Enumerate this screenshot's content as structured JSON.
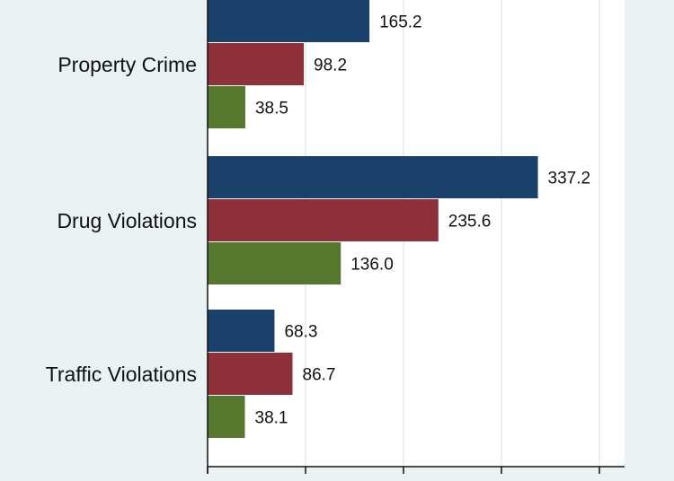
{
  "chart_data": {
    "type": "bar",
    "orientation": "horizontal",
    "categories": [
      "Property Crime",
      "Drug Violations",
      "Traffic Violations"
    ],
    "series": [
      {
        "values": [
          165.2,
          337.2,
          68.3
        ],
        "color": "#1a416b"
      },
      {
        "values": [
          98.2,
          235.6,
          86.7
        ],
        "color": "#8d303a"
      },
      {
        "values": [
          38.5,
          136.0,
          38.1
        ],
        "color": "#55782e"
      }
    ],
    "value_labels": [
      [
        "165.2",
        "337.2",
        "68.3"
      ],
      [
        "98.2",
        "235.6",
        "86.7"
      ],
      [
        "38.5",
        "136.0",
        "38.1"
      ]
    ],
    "xlim": [
      0,
      400
    ],
    "x_ticks": [
      0,
      100,
      200,
      300,
      400
    ],
    "grid": true,
    "legend": "none",
    "title": "",
    "xlabel": "",
    "ylabel": ""
  }
}
